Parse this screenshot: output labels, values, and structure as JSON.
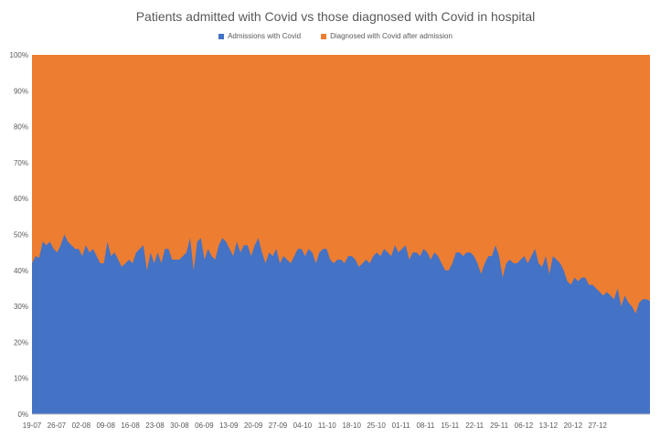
{
  "chart_data": {
    "type": "area",
    "stacked": "percent",
    "title": "Patients admitted with Covid vs those diagnosed with Covid in hospital",
    "xlabel": "",
    "ylabel": "",
    "ylim": [
      0,
      100
    ],
    "y_ticks": [
      "0%",
      "10%",
      "20%",
      "30%",
      "40%",
      "50%",
      "60%",
      "70%",
      "80%",
      "90%",
      "100%"
    ],
    "x_tick_labels": [
      "19-07",
      "26-07",
      "02-08",
      "09-08",
      "16-08",
      "23-08",
      "30-08",
      "06-09",
      "13-09",
      "20-09",
      "27-09",
      "04-10",
      "11-10",
      "18-10",
      "25-10",
      "01-11",
      "08-11",
      "15-11",
      "22-11",
      "29-11",
      "06-12",
      "13-12",
      "20-12",
      "27-12"
    ],
    "legend_position": "top-center",
    "grid": true,
    "series": [
      {
        "name": "Admissions with Covid",
        "color": "#4472C4",
        "values": [
          42,
          44,
          43.5,
          48,
          47,
          48,
          46,
          45,
          47,
          50,
          48,
          47,
          46,
          46,
          44,
          47,
          45,
          46,
          44,
          42,
          42,
          48,
          44,
          45,
          43,
          41,
          42,
          43,
          42,
          45,
          46,
          47,
          40,
          45,
          42,
          45,
          42,
          46,
          46,
          43,
          43,
          43,
          44,
          45,
          49,
          40,
          48,
          49,
          43,
          46,
          44,
          43,
          47,
          49,
          48,
          46,
          44,
          48,
          45,
          47,
          47,
          44,
          47,
          49,
          45,
          42,
          45,
          44,
          46,
          42,
          44,
          43,
          42,
          44,
          46,
          46,
          44,
          46,
          45,
          42,
          45,
          46,
          46,
          43,
          42,
          43,
          43,
          42,
          44,
          44,
          43,
          41,
          42,
          43,
          42,
          44,
          45,
          44,
          46,
          45,
          44,
          47,
          45,
          46,
          47,
          43,
          45,
          45,
          44,
          46,
          45,
          43,
          45,
          44,
          42,
          40,
          40,
          42,
          45,
          45,
          44,
          45,
          45,
          44,
          42,
          39,
          42,
          44,
          44,
          47,
          44,
          38,
          42,
          43,
          42,
          42,
          43,
          44,
          42,
          44,
          46,
          42,
          41,
          44,
          39,
          44,
          43,
          42,
          40,
          37,
          36,
          38,
          37,
          38,
          38,
          36,
          36,
          35,
          34,
          33,
          34,
          33,
          32,
          35,
          30,
          33,
          31,
          30,
          28,
          31,
          32,
          32,
          31.5
        ]
      },
      {
        "name": "Diagnosed with Covid after admission",
        "color": "#ED7D31",
        "values_note": "complement to 100%"
      }
    ]
  }
}
